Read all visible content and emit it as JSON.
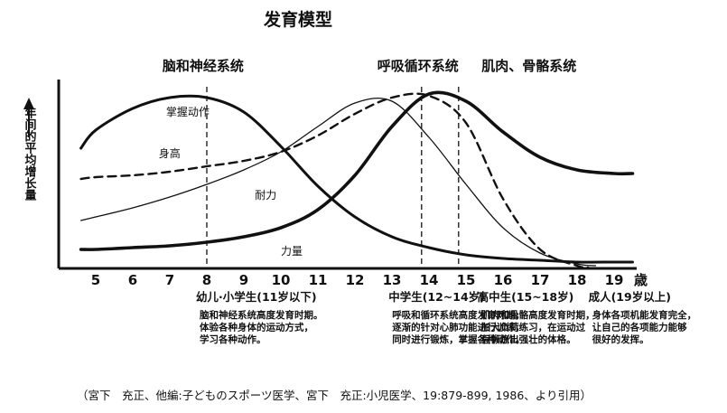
{
  "chart_data": {
    "type": "line",
    "title": "发育模型",
    "ylabel": "年间的平均增长量",
    "xlabel": "",
    "x_unit": "歳",
    "x_ticks": [
      5,
      6,
      7,
      8,
      9,
      10,
      11,
      12,
      13,
      14,
      15,
      16,
      17,
      18,
      19
    ],
    "xlim": [
      4.2,
      19.8
    ],
    "ylim": [
      0,
      100
    ],
    "grid": false,
    "system_labels": [
      {
        "text": "脑和神经系统",
        "x": 7.9
      },
      {
        "text": "呼吸循环系统",
        "x": 13.7
      },
      {
        "text": "肌肉、骨骼系统",
        "x": 16.7
      }
    ],
    "series": [
      {
        "name": "掌握动作",
        "style": "thick",
        "label_at": [
          6.9,
          84
        ],
        "x": [
          4.6,
          5,
          6,
          7,
          8,
          9,
          10,
          11,
          12,
          13,
          14,
          15,
          16,
          17,
          18,
          19,
          19.5
        ],
        "y": [
          66,
          76,
          88,
          94,
          94,
          86,
          67,
          45,
          28,
          17,
          11,
          7,
          5,
          4,
          3,
          3,
          3
        ]
      },
      {
        "name": "身高",
        "style": "dashed",
        "label_at": [
          6.7,
          61
        ],
        "x": [
          4.6,
          5,
          6,
          7,
          8,
          9,
          10,
          11,
          12,
          13,
          14,
          15,
          16,
          17,
          18,
          18.3
        ],
        "y": [
          49,
          50,
          51,
          53,
          56,
          59,
          64,
          73,
          85,
          94,
          95,
          80,
          38,
          10,
          1,
          0
        ]
      },
      {
        "name": "耐力",
        "style": "thin",
        "label_at": [
          9.3,
          38
        ],
        "x": [
          4.6,
          5,
          6,
          7,
          8,
          9,
          10,
          11,
          12,
          13,
          14,
          15,
          16,
          17,
          18,
          18.5
        ],
        "y": [
          26,
          28,
          33,
          39,
          46,
          54,
          64,
          78,
          91,
          92,
          72,
          46,
          22,
          8,
          2,
          1
        ]
      },
      {
        "name": "力量",
        "style": "thicker",
        "label_at": [
          10,
          7
        ],
        "x": [
          4.6,
          5,
          6,
          7,
          8,
          9,
          10,
          11,
          12,
          13,
          14,
          15,
          16,
          17,
          18,
          19,
          19.5
        ],
        "y": [
          10,
          10,
          11,
          12,
          14,
          17,
          22,
          32,
          51,
          78,
          96,
          92,
          75,
          61,
          54,
          52,
          52
        ]
      }
    ],
    "markers": [
      {
        "x": 8,
        "style": "dashed"
      },
      {
        "x": 13.8,
        "style": "dashed"
      },
      {
        "x": 14.8,
        "style": "dashed"
      }
    ]
  },
  "stages": [
    {
      "heading": "幼儿·小学生(11岁以下)",
      "x": 8,
      "lines": [
        "脑和神经系统高度发育时期。",
        "体验各种身体的运动方式，",
        "学习各种动作。"
      ]
    },
    {
      "heading": "中学生(12~14岁)",
      "x": 13.2,
      "lines": [
        "呼吸和循环系统高度发育时期，",
        "逐渐的针对心肺功能进行训练，",
        "同时进行锻炼，掌握各种动作。"
      ]
    },
    {
      "heading": "高中生(15~18岁)",
      "x": 15.6,
      "lines": [
        "肌肉和骨骼高度发育时期，",
        "加大负荷练习，在运动过",
        "程锻炼出强壮的体格。"
      ]
    },
    {
      "heading": "成人(19岁以上)",
      "x": 18.6,
      "lines": [
        "身体各项机能发育完全，",
        "让自己的各项能力能够",
        "很好的发挥。"
      ]
    }
  ],
  "citation": "（宮下　充正、他編:子どものスポーツ医学、宮下　充正:小児医学、19:879-899, 1986、より引用）"
}
